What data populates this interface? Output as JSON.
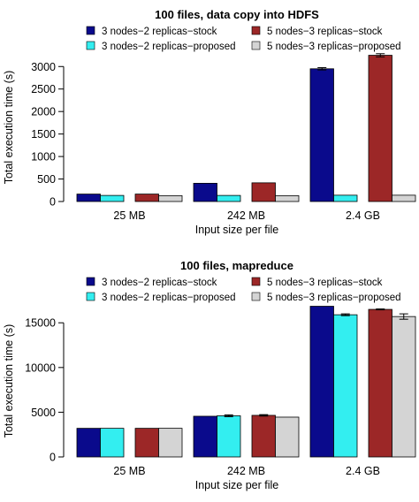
{
  "colors": {
    "stock3": "#0a0a8c",
    "proposed3": "#33eef0",
    "stock5": "#9c2727",
    "proposed5": "#d4d4d4"
  },
  "chart_data": [
    {
      "type": "bar",
      "title": "100 files, data copy into HDFS",
      "xlabel": "Input size per file",
      "ylabel": "Total execution time (s)",
      "categories": [
        "25 MB",
        "242 MB",
        "2.4 GB"
      ],
      "ylim": [
        0,
        3300
      ],
      "yticks": [
        0,
        500,
        1000,
        1500,
        2000,
        2500,
        3000
      ],
      "legend_position": "top",
      "series": [
        {
          "name": "3 nodes−2 replicas−stock",
          "values": [
            165,
            405,
            2950
          ],
          "error": [
            0,
            0,
            25
          ],
          "color": "#0a0a8c"
        },
        {
          "name": "3 nodes−2 replicas−proposed",
          "values": [
            135,
            135,
            140
          ],
          "error": [
            0,
            0,
            0
          ],
          "color": "#33eef0"
        },
        {
          "name": "5 nodes−3 replicas−stock",
          "values": [
            165,
            415,
            3250
          ],
          "error": [
            0,
            0,
            35
          ],
          "color": "#9c2727"
        },
        {
          "name": "5 nodes−3 replicas−proposed",
          "values": [
            130,
            130,
            140
          ],
          "error": [
            0,
            0,
            0
          ],
          "color": "#d4d4d4"
        }
      ]
    },
    {
      "type": "bar",
      "title": "100 files, mapreduce",
      "xlabel": "Input size per file",
      "ylabel": "Total execution time (s)",
      "categories": [
        "25 MB",
        "242 MB",
        "2.4 GB"
      ],
      "ylim": [
        0,
        17000
      ],
      "yticks": [
        0,
        5000,
        10000,
        15000
      ],
      "legend_position": "top",
      "series": [
        {
          "name": "3 nodes−2 replicas−stock",
          "values": [
            3200,
            4550,
            16850
          ],
          "error": [
            0,
            0,
            0
          ],
          "color": "#0a0a8c"
        },
        {
          "name": "3 nodes−2 replicas−proposed",
          "values": [
            3200,
            4600,
            15900
          ],
          "error": [
            0,
            100,
            100
          ],
          "color": "#33eef0"
        },
        {
          "name": "5 nodes−3 replicas−stock",
          "values": [
            3200,
            4650,
            16500
          ],
          "error": [
            0,
            80,
            50
          ],
          "color": "#9c2727"
        },
        {
          "name": "5 nodes−3 replicas−proposed",
          "values": [
            3200,
            4450,
            15700
          ],
          "error": [
            0,
            0,
            300
          ],
          "color": "#d4d4d4"
        }
      ]
    }
  ]
}
